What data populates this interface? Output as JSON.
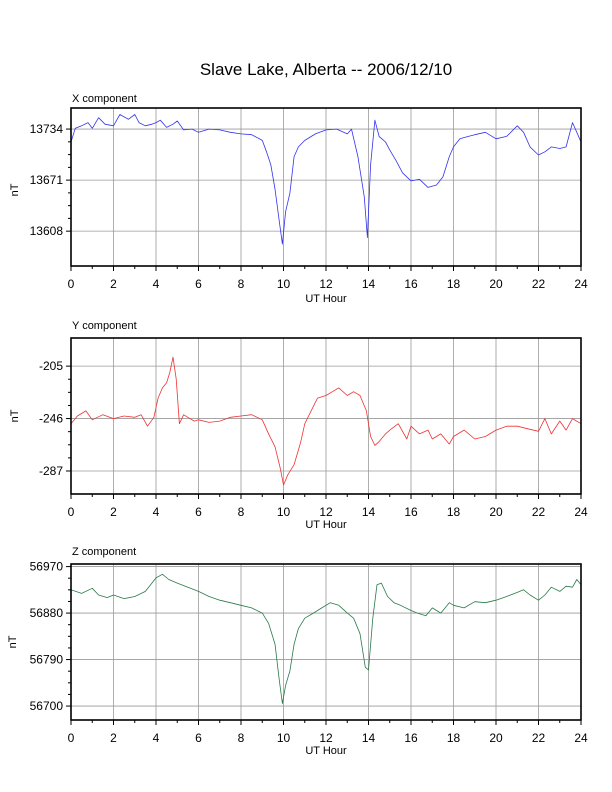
{
  "page_title": "Slave Lake, Alberta -- 2006/12/10",
  "chart_data": [
    {
      "type": "line",
      "title": "X component",
      "xlabel": "UT Hour",
      "ylabel": "nT",
      "xlim": [
        0,
        24
      ],
      "xticks": [
        0,
        2,
        4,
        6,
        8,
        10,
        12,
        14,
        16,
        18,
        20,
        22,
        24
      ],
      "ylim": [
        13565,
        13760
      ],
      "yticks": [
        13608,
        13671,
        13734
      ],
      "grid": true,
      "color": "#3333ee",
      "series": [
        {
          "x": [
            0,
            0.2,
            0.5,
            0.8,
            1.0,
            1.3,
            1.6,
            2.0,
            2.3,
            2.7,
            3.0,
            3.2,
            3.5,
            3.8,
            4.0,
            4.2,
            4.5,
            4.8,
            5.0,
            5.3,
            5.7,
            6.0,
            6.5,
            7.0,
            7.5,
            8.0,
            8.5,
            9.0,
            9.2,
            9.4,
            9.6,
            9.8,
            9.95,
            10.1,
            10.3,
            10.5,
            10.7,
            11.0,
            11.5,
            12.0,
            12.5,
            13.0,
            13.2,
            13.5,
            13.8,
            13.95,
            14.1,
            14.3,
            14.5,
            14.8,
            15.0,
            15.3,
            15.6,
            16.0,
            16.4,
            16.8,
            17.2,
            17.5,
            17.8,
            18.0,
            18.3,
            18.7,
            19.0,
            19.5,
            20.0,
            20.5,
            21.0,
            21.3,
            21.6,
            22.0,
            22.3,
            22.6,
            23.0,
            23.3,
            23.6,
            23.8,
            24.0
          ],
          "y": [
            13718,
            13735,
            13738,
            13742,
            13735,
            13748,
            13740,
            13738,
            13752,
            13746,
            13752,
            13742,
            13738,
            13740,
            13742,
            13745,
            13736,
            13740,
            13744,
            13733,
            13734,
            13730,
            13734,
            13733,
            13730,
            13728,
            13727,
            13720,
            13706,
            13690,
            13660,
            13620,
            13592,
            13632,
            13655,
            13700,
            13712,
            13720,
            13728,
            13733,
            13734,
            13728,
            13734,
            13700,
            13650,
            13600,
            13690,
            13745,
            13725,
            13718,
            13708,
            13695,
            13680,
            13670,
            13672,
            13662,
            13665,
            13675,
            13700,
            13712,
            13722,
            13725,
            13727,
            13730,
            13722,
            13725,
            13738,
            13730,
            13712,
            13702,
            13706,
            13712,
            13710,
            13712,
            13742,
            13730,
            13718
          ]
        }
      ]
    },
    {
      "type": "line",
      "title": "Y component",
      "xlabel": "UT Hour",
      "ylabel": "nT",
      "xlim": [
        0,
        24
      ],
      "xticks": [
        0,
        2,
        4,
        6,
        8,
        10,
        12,
        14,
        16,
        18,
        20,
        22,
        24
      ],
      "ylim": [
        -305,
        -183
      ],
      "yticks": [
        -287,
        -246,
        -205
      ],
      "grid": true,
      "color": "#ee3333",
      "series": [
        {
          "x": [
            0,
            0.3,
            0.7,
            1.0,
            1.5,
            2.0,
            2.5,
            3.0,
            3.3,
            3.6,
            3.9,
            4.1,
            4.3,
            4.5,
            4.65,
            4.8,
            4.95,
            5.1,
            5.3,
            5.5,
            5.8,
            6.0,
            6.5,
            7.0,
            7.5,
            8.0,
            8.5,
            9.0,
            9.3,
            9.6,
            9.85,
            10.0,
            10.2,
            10.5,
            10.8,
            11.0,
            11.3,
            11.6,
            12.0,
            12.3,
            12.6,
            13.0,
            13.3,
            13.6,
            13.9,
            14.1,
            14.3,
            14.5,
            14.8,
            15.0,
            15.4,
            15.8,
            16.0,
            16.4,
            16.8,
            17.0,
            17.4,
            17.8,
            18.0,
            18.5,
            19.0,
            19.5,
            20.0,
            20.5,
            21.0,
            21.5,
            22.0,
            22.3,
            22.6,
            23.0,
            23.3,
            23.6,
            24.0
          ],
          "y": [
            -250,
            -244,
            -240,
            -247,
            -243,
            -246,
            -244,
            -245,
            -243,
            -252,
            -245,
            -230,
            -222,
            -218,
            -210,
            -198,
            -215,
            -250,
            -243,
            -245,
            -248,
            -247,
            -249,
            -248,
            -245,
            -244,
            -243,
            -247,
            -258,
            -268,
            -285,
            -298,
            -290,
            -282,
            -265,
            -250,
            -240,
            -230,
            -228,
            -225,
            -222,
            -228,
            -225,
            -228,
            -240,
            -260,
            -267,
            -264,
            -258,
            -255,
            -250,
            -262,
            -252,
            -258,
            -255,
            -262,
            -258,
            -266,
            -260,
            -255,
            -262,
            -260,
            -255,
            -252,
            -252,
            -254,
            -256,
            -246,
            -258,
            -248,
            -255,
            -246,
            -250
          ]
        }
      ]
    },
    {
      "type": "line",
      "title": "Z component",
      "xlabel": "UT Hour",
      "ylabel": "nT",
      "xlim": [
        0,
        24
      ],
      "xticks": [
        0,
        2,
        4,
        6,
        8,
        10,
        12,
        14,
        16,
        18,
        20,
        22,
        24
      ],
      "ylim": [
        56673,
        56975
      ],
      "yticks": [
        56700,
        56790,
        56880,
        56970
      ],
      "grid": true,
      "color": "#2a7a48",
      "series": [
        {
          "x": [
            0,
            0.5,
            1.0,
            1.3,
            1.7,
            2.0,
            2.5,
            3.0,
            3.5,
            4.0,
            4.3,
            4.6,
            5.0,
            5.5,
            6.0,
            6.5,
            7.0,
            7.5,
            8.0,
            8.5,
            9.0,
            9.3,
            9.6,
            9.8,
            9.95,
            10.1,
            10.3,
            10.5,
            10.7,
            11.0,
            11.4,
            11.8,
            12.2,
            12.6,
            13.0,
            13.3,
            13.6,
            13.85,
            14.0,
            14.2,
            14.4,
            14.6,
            14.9,
            15.2,
            15.5,
            16.0,
            16.3,
            16.7,
            17.0,
            17.4,
            17.8,
            18.0,
            18.5,
            19.0,
            19.5,
            20.0,
            20.5,
            21.0,
            21.3,
            21.6,
            22.0,
            22.3,
            22.6,
            23.0,
            23.3,
            23.6,
            23.8,
            24.0
          ],
          "y": [
            56925,
            56918,
            56928,
            56915,
            56910,
            56915,
            56908,
            56912,
            56922,
            56948,
            56955,
            56945,
            56938,
            56930,
            56922,
            56912,
            56905,
            56900,
            56895,
            56890,
            56880,
            56860,
            56820,
            56750,
            56705,
            56740,
            56768,
            56820,
            56850,
            56870,
            56880,
            56890,
            56900,
            56895,
            56880,
            56870,
            56840,
            56775,
            56770,
            56870,
            56935,
            56938,
            56912,
            56900,
            56895,
            56885,
            56880,
            56875,
            56890,
            56880,
            56900,
            56895,
            56890,
            56902,
            56900,
            56905,
            56912,
            56920,
            56925,
            56915,
            56905,
            56915,
            56930,
            56922,
            56932,
            56930,
            56945,
            56935
          ]
        }
      ]
    }
  ]
}
